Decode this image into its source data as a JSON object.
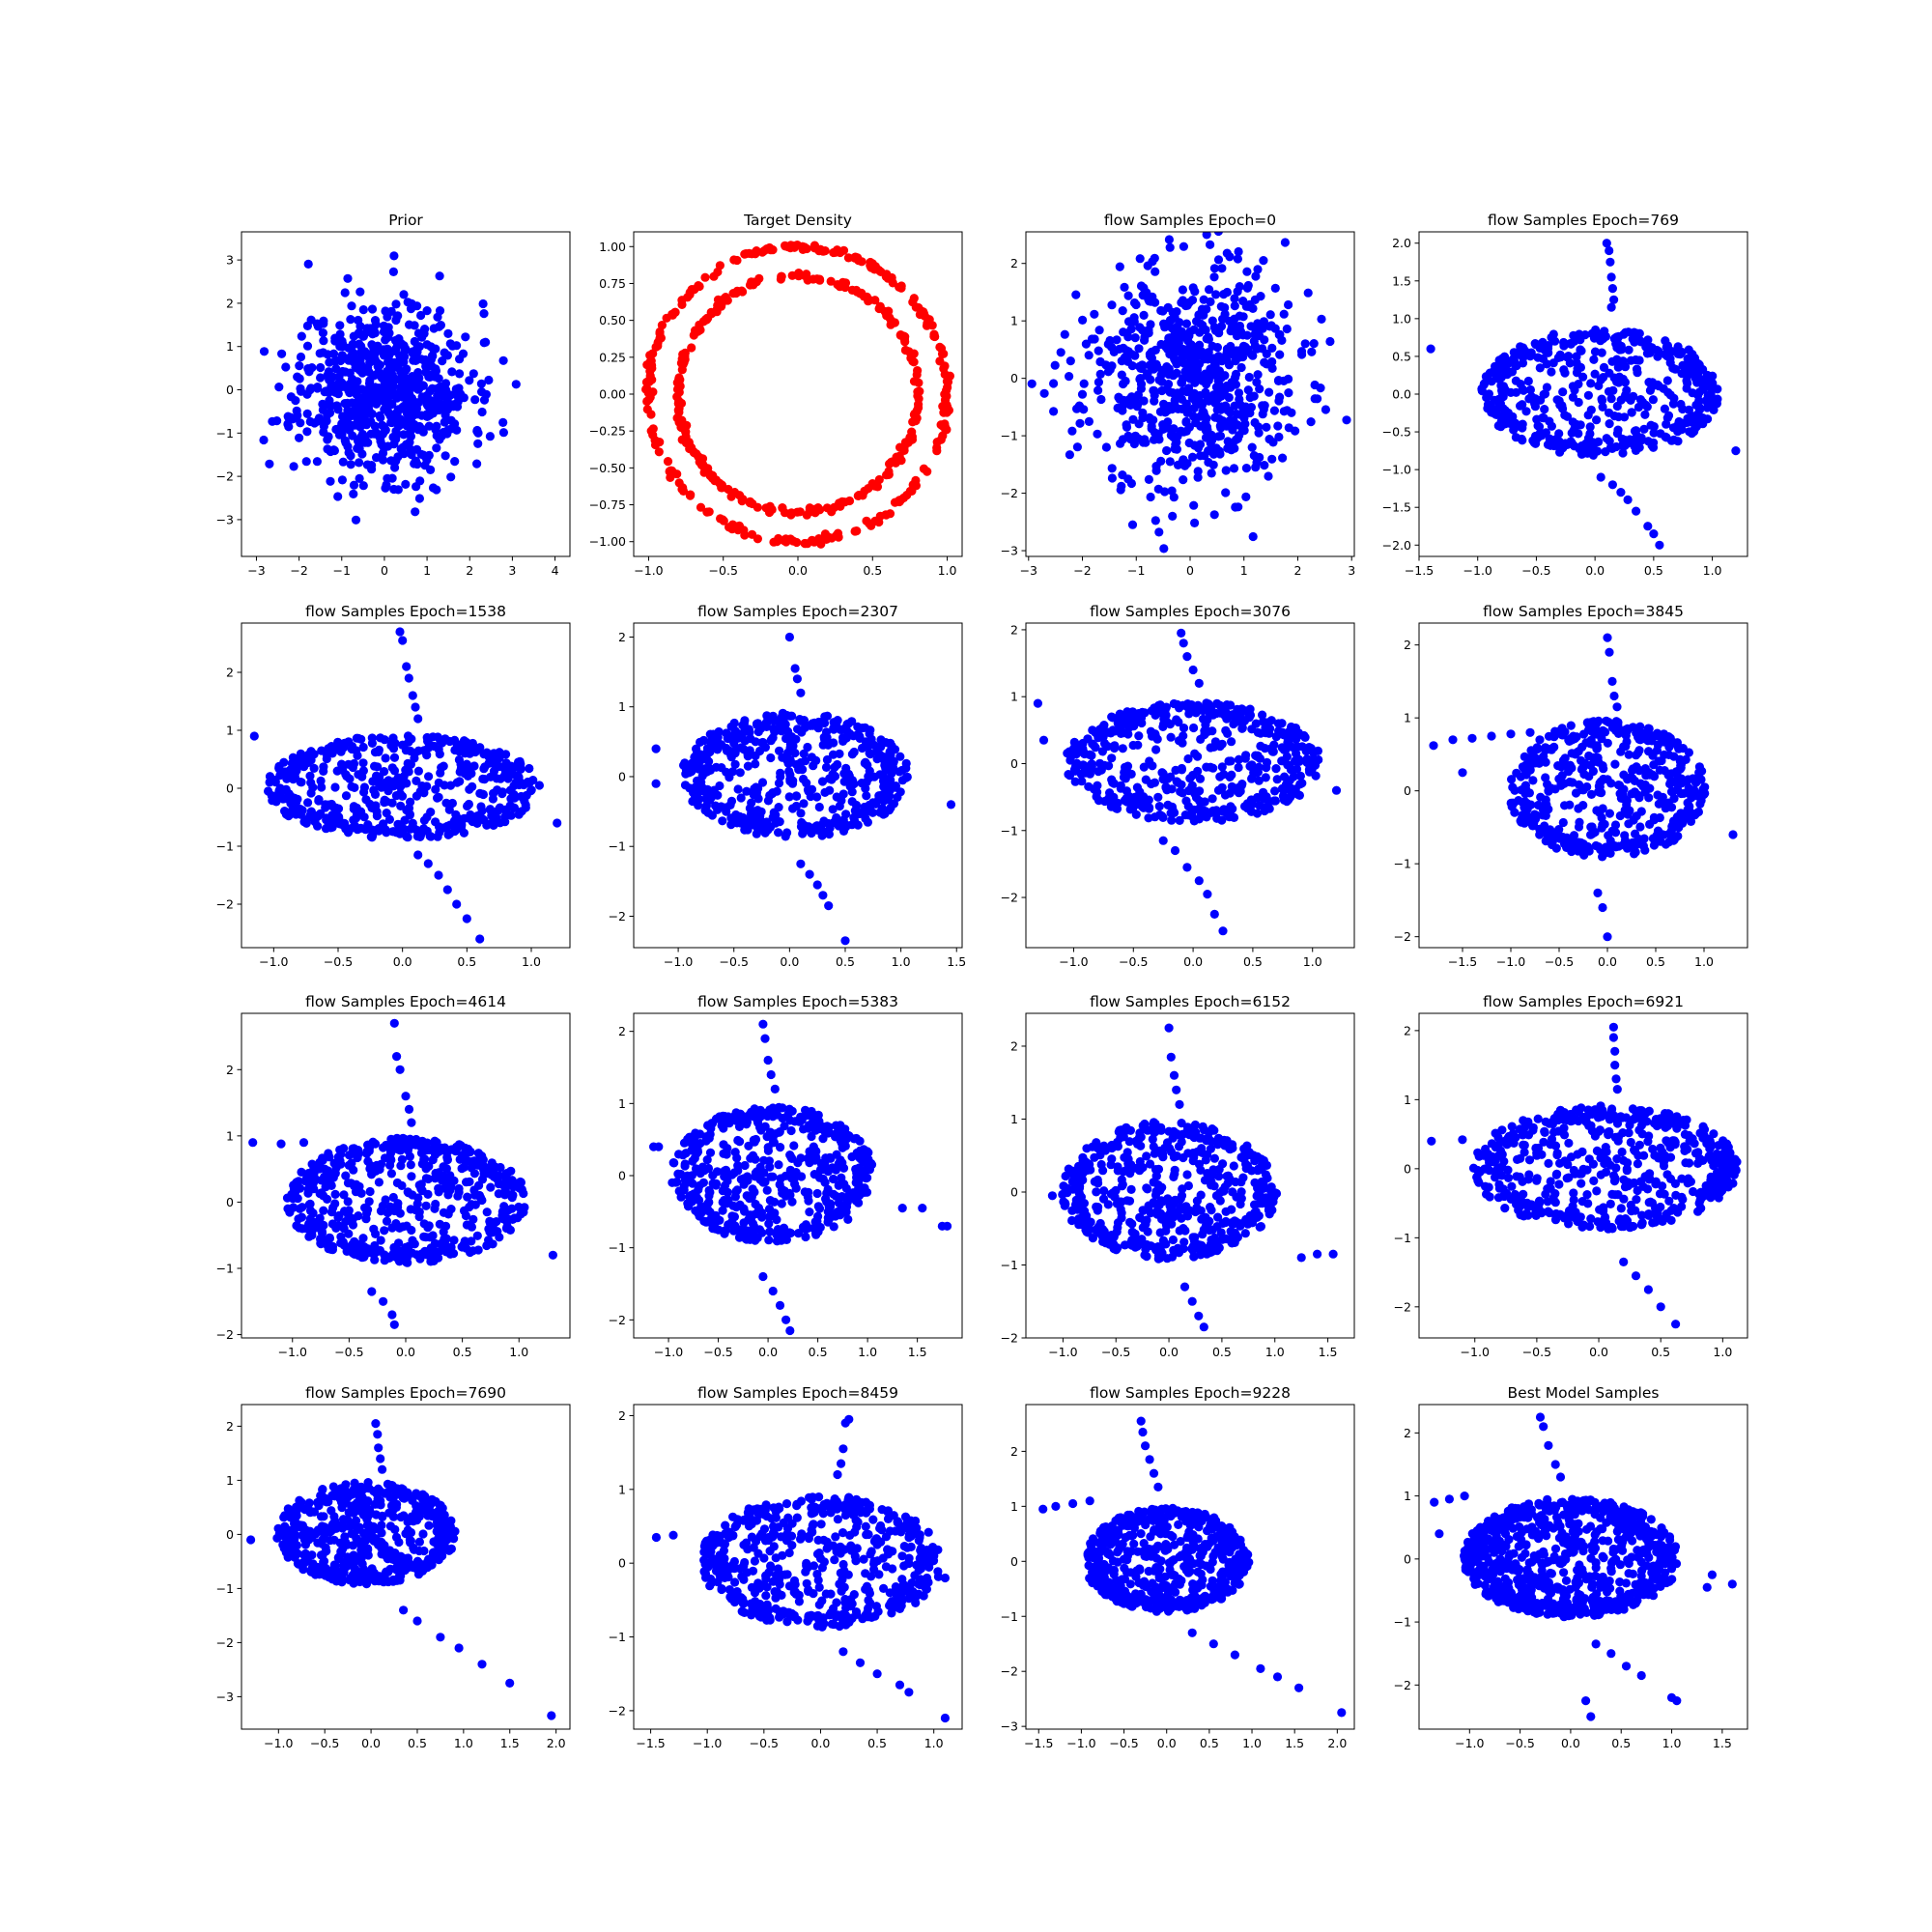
{
  "chart_data": [
    {
      "type": "scatter",
      "kind": "gauss",
      "title": "Prior",
      "color": "#0000ff",
      "n": 700,
      "seed": 11,
      "sx": 1,
      "sy": 1,
      "xlim": [
        -3.35,
        4.35
      ],
      "ylim": [
        -3.85,
        3.65
      ],
      "xticks": [
        -3,
        -2,
        -1,
        0,
        1,
        2,
        3,
        4
      ],
      "yticks": [
        -3,
        -2,
        -1,
        0,
        1,
        2,
        3
      ]
    },
    {
      "type": "scatter",
      "kind": "rings",
      "title": "Target Density",
      "color": "#ff0000",
      "n": 500,
      "seed": 5,
      "radii": [
        1.0,
        0.8
      ],
      "xlim": [
        -1.1,
        1.1
      ],
      "ylim": [
        -1.1,
        1.1
      ],
      "xticks": [
        -1.0,
        -0.5,
        0.0,
        0.5,
        1.0
      ],
      "yticks": [
        -1.0,
        -0.75,
        -0.5,
        -0.25,
        0.0,
        0.25,
        0.5,
        0.75,
        1.0
      ]
    },
    {
      "type": "scatter",
      "kind": "gauss",
      "title": "flow Samples Epoch=0",
      "color": "#0000ff",
      "n": 700,
      "seed": 23,
      "sx": 1,
      "sy": 1,
      "xlim": [
        -3.05,
        3.05
      ],
      "ylim": [
        -3.1,
        2.55
      ],
      "xticks": [
        -3,
        -2,
        -1,
        0,
        1,
        2,
        3
      ],
      "yticks": [
        -3,
        -2,
        -1,
        0,
        1,
        2
      ]
    },
    {
      "type": "scatter",
      "kind": "flow",
      "title": "flow Samples Epoch=769",
      "color": "#0000ff",
      "n": 520,
      "seed": 31,
      "rx": 1.0,
      "ry": 0.85,
      "shift": 0.05,
      "xlim": [
        -1.5,
        1.3
      ],
      "ylim": [
        -2.15,
        2.15
      ],
      "xticks": [
        -1.5,
        -1.0,
        -0.5,
        0.0,
        0.5,
        1.0
      ],
      "yticks": [
        -2.0,
        -1.5,
        -1.0,
        -0.5,
        0.0,
        0.5,
        1.0,
        1.5,
        2.0
      ],
      "extras": [
        [
          0.1,
          2.0
        ],
        [
          0.12,
          1.9
        ],
        [
          0.13,
          1.75
        ],
        [
          0.14,
          1.55
        ],
        [
          0.15,
          1.4
        ],
        [
          0.16,
          1.25
        ],
        [
          0.14,
          1.15
        ],
        [
          0.55,
          -2.0
        ],
        [
          0.5,
          -1.85
        ],
        [
          0.45,
          -1.75
        ],
        [
          0.35,
          -1.55
        ],
        [
          0.28,
          -1.4
        ],
        [
          0.22,
          -1.3
        ],
        [
          0.15,
          -1.2
        ],
        [
          0.05,
          -1.1
        ],
        [
          -1.4,
          0.6
        ],
        [
          1.2,
          -0.75
        ]
      ]
    },
    {
      "type": "scatter",
      "kind": "flow",
      "title": "flow Samples Epoch=1538",
      "color": "#0000ff",
      "n": 520,
      "seed": 37,
      "rx": 1.05,
      "ry": 0.9,
      "shift": 0.0,
      "xlim": [
        -1.25,
        1.3
      ],
      "ylim": [
        -2.75,
        2.85
      ],
      "xticks": [
        -1.0,
        -0.5,
        0.0,
        0.5,
        1.0
      ],
      "yticks": [
        -2,
        -1,
        0,
        1,
        2
      ],
      "extras": [
        [
          -0.02,
          2.7
        ],
        [
          0.0,
          2.55
        ],
        [
          0.03,
          2.1
        ],
        [
          0.05,
          1.9
        ],
        [
          0.08,
          1.6
        ],
        [
          0.1,
          1.4
        ],
        [
          0.12,
          1.2
        ],
        [
          0.6,
          -2.6
        ],
        [
          0.5,
          -2.25
        ],
        [
          0.42,
          -2.0
        ],
        [
          0.35,
          -1.75
        ],
        [
          0.28,
          -1.5
        ],
        [
          0.2,
          -1.3
        ],
        [
          0.12,
          -1.15
        ],
        [
          -1.15,
          0.9
        ],
        [
          1.2,
          -0.6
        ]
      ]
    },
    {
      "type": "scatter",
      "kind": "flow",
      "title": "flow Samples Epoch=2307",
      "color": "#0000ff",
      "n": 520,
      "seed": 41,
      "rx": 1.0,
      "ry": 0.9,
      "shift": 0.05,
      "xlim": [
        -1.4,
        1.55
      ],
      "ylim": [
        -2.45,
        2.2
      ],
      "xticks": [
        -1.0,
        -0.5,
        0.0,
        0.5,
        1.0,
        1.5
      ],
      "yticks": [
        -2,
        -1,
        0,
        1,
        2
      ],
      "extras": [
        [
          0.0,
          2.0
        ],
        [
          0.05,
          1.55
        ],
        [
          0.07,
          1.4
        ],
        [
          0.1,
          1.2
        ],
        [
          0.5,
          -2.35
        ],
        [
          0.35,
          -1.85
        ],
        [
          0.3,
          -1.7
        ],
        [
          0.25,
          -1.55
        ],
        [
          0.18,
          -1.4
        ],
        [
          0.1,
          -1.25
        ],
        [
          -1.2,
          0.4
        ],
        [
          -1.2,
          -0.1
        ],
        [
          1.45,
          -0.4
        ]
      ]
    },
    {
      "type": "scatter",
      "kind": "flow",
      "title": "flow Samples Epoch=3076",
      "color": "#0000ff",
      "n": 520,
      "seed": 43,
      "rx": 1.05,
      "ry": 0.9,
      "shift": 0.0,
      "xlim": [
        -1.4,
        1.35
      ],
      "ylim": [
        -2.75,
        2.1
      ],
      "xticks": [
        -1.0,
        -0.5,
        0.0,
        0.5,
        1.0
      ],
      "yticks": [
        -2,
        -1,
        0,
        1,
        2
      ],
      "extras": [
        [
          -0.1,
          1.95
        ],
        [
          -0.08,
          1.8
        ],
        [
          -0.05,
          1.6
        ],
        [
          0.0,
          1.4
        ],
        [
          0.05,
          1.2
        ],
        [
          0.25,
          -2.5
        ],
        [
          0.18,
          -2.25
        ],
        [
          0.12,
          -1.95
        ],
        [
          0.05,
          -1.75
        ],
        [
          -0.05,
          -1.55
        ],
        [
          -0.15,
          -1.3
        ],
        [
          -0.25,
          -1.15
        ],
        [
          -1.3,
          0.9
        ],
        [
          -1.25,
          0.35
        ],
        [
          1.2,
          -0.4
        ]
      ]
    },
    {
      "type": "scatter",
      "kind": "flow",
      "title": "flow Samples Epoch=3845",
      "color": "#0000ff",
      "n": 520,
      "seed": 47,
      "rx": 1.0,
      "ry": 0.95,
      "shift": 0.0,
      "xlim": [
        -1.95,
        1.45
      ],
      "ylim": [
        -2.15,
        2.3
      ],
      "xticks": [
        -1.5,
        -1.0,
        -0.5,
        0.0,
        0.5,
        1.0
      ],
      "yticks": [
        -2,
        -1,
        0,
        1,
        2
      ],
      "extras": [
        [
          0.0,
          2.1
        ],
        [
          0.02,
          1.9
        ],
        [
          0.05,
          1.5
        ],
        [
          0.07,
          1.3
        ],
        [
          0.1,
          1.15
        ],
        [
          0.0,
          -2.0
        ],
        [
          -0.05,
          -1.6
        ],
        [
          -0.1,
          -1.4
        ],
        [
          -1.8,
          0.62
        ],
        [
          -1.6,
          0.7
        ],
        [
          -1.4,
          0.72
        ],
        [
          -1.2,
          0.75
        ],
        [
          -1.0,
          0.78
        ],
        [
          -0.8,
          0.8
        ],
        [
          -1.5,
          0.25
        ],
        [
          1.3,
          -0.6
        ]
      ]
    },
    {
      "type": "scatter",
      "kind": "flow",
      "title": "flow Samples Epoch=4614",
      "color": "#0000ff",
      "n": 560,
      "seed": 53,
      "rx": 1.05,
      "ry": 0.95,
      "shift": 0.0,
      "xlim": [
        -1.45,
        1.45
      ],
      "ylim": [
        -2.05,
        2.85
      ],
      "xticks": [
        -1.0,
        -0.5,
        0.0,
        0.5,
        1.0
      ],
      "yticks": [
        -2,
        -1,
        0,
        1,
        2
      ],
      "extras": [
        [
          -0.1,
          2.7
        ],
        [
          -0.08,
          2.2
        ],
        [
          -0.05,
          2.0
        ],
        [
          0.0,
          1.6
        ],
        [
          0.03,
          1.4
        ],
        [
          0.05,
          1.2
        ],
        [
          -0.1,
          -1.85
        ],
        [
          -0.12,
          -1.7
        ],
        [
          -0.2,
          -1.5
        ],
        [
          -0.3,
          -1.35
        ],
        [
          -1.35,
          0.9
        ],
        [
          -1.1,
          0.88
        ],
        [
          -0.9,
          0.9
        ],
        [
          1.3,
          -0.8
        ]
      ]
    },
    {
      "type": "scatter",
      "kind": "flow",
      "title": "flow Samples Epoch=5383",
      "color": "#0000ff",
      "n": 560,
      "seed": 59,
      "rx": 1.0,
      "ry": 0.95,
      "shift": 0.05,
      "xlim": [
        -1.35,
        1.95
      ],
      "ylim": [
        -2.25,
        2.25
      ],
      "xticks": [
        -1.0,
        -0.5,
        0.0,
        0.5,
        1.0,
        1.5
      ],
      "yticks": [
        -2,
        -1,
        0,
        1,
        2
      ],
      "extras": [
        [
          -0.05,
          2.1
        ],
        [
          -0.03,
          1.9
        ],
        [
          0.0,
          1.6
        ],
        [
          0.03,
          1.4
        ],
        [
          0.07,
          1.2
        ],
        [
          0.22,
          -2.15
        ],
        [
          0.18,
          -2.0
        ],
        [
          0.12,
          -1.8
        ],
        [
          0.05,
          -1.6
        ],
        [
          -0.05,
          -1.4
        ],
        [
          -1.1,
          0.4
        ],
        [
          -1.15,
          0.4
        ],
        [
          1.75,
          -0.7
        ],
        [
          1.8,
          -0.7
        ],
        [
          1.55,
          -0.45
        ],
        [
          1.35,
          -0.45
        ]
      ]
    },
    {
      "type": "scatter",
      "kind": "flow",
      "title": "flow Samples Epoch=6152",
      "color": "#0000ff",
      "n": 560,
      "seed": 61,
      "rx": 1.0,
      "ry": 0.95,
      "shift": 0.0,
      "xlim": [
        -1.35,
        1.75
      ],
      "ylim": [
        -2.0,
        2.45
      ],
      "xticks": [
        -1.0,
        -0.5,
        0.0,
        0.5,
        1.0,
        1.5
      ],
      "yticks": [
        -2,
        -1,
        0,
        1,
        2
      ],
      "extras": [
        [
          0.0,
          2.25
        ],
        [
          0.02,
          1.85
        ],
        [
          0.05,
          1.6
        ],
        [
          0.07,
          1.4
        ],
        [
          0.1,
          1.2
        ],
        [
          0.33,
          -1.85
        ],
        [
          0.28,
          -1.7
        ],
        [
          0.22,
          -1.5
        ],
        [
          0.15,
          -1.3
        ],
        [
          -1.1,
          -0.05
        ],
        [
          1.55,
          -0.85
        ],
        [
          1.4,
          -0.85
        ],
        [
          1.25,
          -0.9
        ]
      ]
    },
    {
      "type": "scatter",
      "kind": "flow",
      "title": "flow Samples Epoch=6921",
      "color": "#0000ff",
      "n": 560,
      "seed": 67,
      "rx": 1.05,
      "ry": 0.9,
      "shift": 0.05,
      "xlim": [
        -1.45,
        1.2
      ],
      "ylim": [
        -2.45,
        2.25
      ],
      "xticks": [
        -1.0,
        -0.5,
        0.0,
        0.5,
        1.0
      ],
      "yticks": [
        -2,
        -1,
        0,
        1,
        2
      ],
      "extras": [
        [
          0.12,
          2.05
        ],
        [
          0.12,
          1.9
        ],
        [
          0.13,
          1.7
        ],
        [
          0.13,
          1.5
        ],
        [
          0.14,
          1.3
        ],
        [
          0.15,
          1.15
        ],
        [
          0.62,
          -2.25
        ],
        [
          0.5,
          -2.0
        ],
        [
          0.4,
          -1.75
        ],
        [
          0.3,
          -1.55
        ],
        [
          0.2,
          -1.35
        ],
        [
          -1.35,
          0.4
        ],
        [
          -1.1,
          0.42
        ]
      ]
    },
    {
      "type": "scatter",
      "kind": "flow",
      "title": "flow Samples Epoch=7690",
      "color": "#0000ff",
      "n": 560,
      "seed": 71,
      "rx": 0.95,
      "ry": 0.95,
      "shift": -0.05,
      "xlim": [
        -1.4,
        2.15
      ],
      "ylim": [
        -3.6,
        2.4
      ],
      "xticks": [
        -1.0,
        -0.5,
        0.0,
        0.5,
        1.0,
        1.5,
        2.0
      ],
      "yticks": [
        -3,
        -2,
        -1,
        0,
        1,
        2
      ],
      "extras": [
        [
          0.05,
          2.05
        ],
        [
          0.07,
          1.85
        ],
        [
          0.08,
          1.6
        ],
        [
          0.1,
          1.4
        ],
        [
          0.12,
          1.2
        ],
        [
          1.95,
          -3.35
        ],
        [
          1.5,
          -2.75
        ],
        [
          1.2,
          -2.4
        ],
        [
          0.95,
          -2.1
        ],
        [
          0.75,
          -1.9
        ],
        [
          0.5,
          -1.6
        ],
        [
          0.35,
          -1.4
        ],
        [
          -1.3,
          -0.1
        ]
      ]
    },
    {
      "type": "scatter",
      "kind": "flow",
      "title": "flow Samples Epoch=8459",
      "color": "#0000ff",
      "n": 560,
      "seed": 73,
      "rx": 1.05,
      "ry": 0.9,
      "shift": 0.0,
      "xlim": [
        -1.65,
        1.25
      ],
      "ylim": [
        -2.25,
        2.15
      ],
      "xticks": [
        -1.5,
        -1.0,
        -0.5,
        0.0,
        0.5,
        1.0
      ],
      "yticks": [
        -2,
        -1,
        0,
        1,
        2
      ],
      "extras": [
        [
          0.25,
          1.95
        ],
        [
          0.22,
          1.9
        ],
        [
          0.2,
          1.55
        ],
        [
          0.18,
          1.35
        ],
        [
          0.15,
          1.2
        ],
        [
          1.1,
          -2.1
        ],
        [
          0.78,
          -1.75
        ],
        [
          0.7,
          -1.65
        ],
        [
          0.5,
          -1.5
        ],
        [
          0.35,
          -1.35
        ],
        [
          0.2,
          -1.2
        ],
        [
          -1.45,
          0.35
        ],
        [
          -1.3,
          0.38
        ],
        [
          1.1,
          -0.2
        ]
      ]
    },
    {
      "type": "scatter",
      "kind": "flow",
      "title": "flow Samples Epoch=9228",
      "color": "#0000ff",
      "n": 560,
      "seed": 79,
      "rx": 0.95,
      "ry": 0.95,
      "shift": 0.0,
      "xlim": [
        -1.65,
        2.2
      ],
      "ylim": [
        -3.05,
        2.85
      ],
      "xticks": [
        -1.5,
        -1.0,
        -0.5,
        0.0,
        0.5,
        1.0,
        1.5,
        2.0
      ],
      "yticks": [
        -3,
        -2,
        -1,
        0,
        1,
        2
      ],
      "extras": [
        [
          -0.3,
          2.55
        ],
        [
          -0.28,
          2.35
        ],
        [
          -0.25,
          2.1
        ],
        [
          -0.2,
          1.85
        ],
        [
          -0.15,
          1.6
        ],
        [
          -0.1,
          1.35
        ],
        [
          2.05,
          -2.75
        ],
        [
          1.55,
          -2.3
        ],
        [
          1.3,
          -2.1
        ],
        [
          1.1,
          -1.95
        ],
        [
          0.8,
          -1.7
        ],
        [
          0.55,
          -1.5
        ],
        [
          0.3,
          -1.3
        ],
        [
          -1.45,
          0.95
        ],
        [
          -1.3,
          1.0
        ],
        [
          -1.1,
          1.05
        ],
        [
          -0.9,
          1.1
        ]
      ]
    },
    {
      "type": "scatter",
      "kind": "flow",
      "title": "Best Model Samples",
      "color": "#0000ff",
      "n": 800,
      "seed": 83,
      "rx": 1.05,
      "ry": 0.95,
      "shift": 0.0,
      "xlim": [
        -1.5,
        1.75
      ],
      "ylim": [
        -2.7,
        2.45
      ],
      "xticks": [
        -1.0,
        -0.5,
        0.0,
        0.5,
        1.0,
        1.5
      ],
      "yticks": [
        -2,
        -1,
        0,
        1,
        2
      ],
      "extras": [
        [
          -0.3,
          2.25
        ],
        [
          -0.27,
          2.1
        ],
        [
          -0.22,
          1.8
        ],
        [
          -0.15,
          1.5
        ],
        [
          -0.1,
          1.3
        ],
        [
          0.2,
          -2.5
        ],
        [
          0.15,
          -2.25
        ],
        [
          1.05,
          -2.25
        ],
        [
          1.0,
          -2.2
        ],
        [
          0.7,
          -1.85
        ],
        [
          0.55,
          -1.7
        ],
        [
          0.4,
          -1.5
        ],
        [
          0.25,
          -1.35
        ],
        [
          1.6,
          -0.4
        ],
        [
          1.4,
          -0.25
        ],
        [
          1.35,
          -0.45
        ],
        [
          -1.35,
          0.9
        ],
        [
          -1.2,
          0.95
        ],
        [
          -1.05,
          1.0
        ],
        [
          -1.3,
          0.4
        ]
      ]
    }
  ]
}
